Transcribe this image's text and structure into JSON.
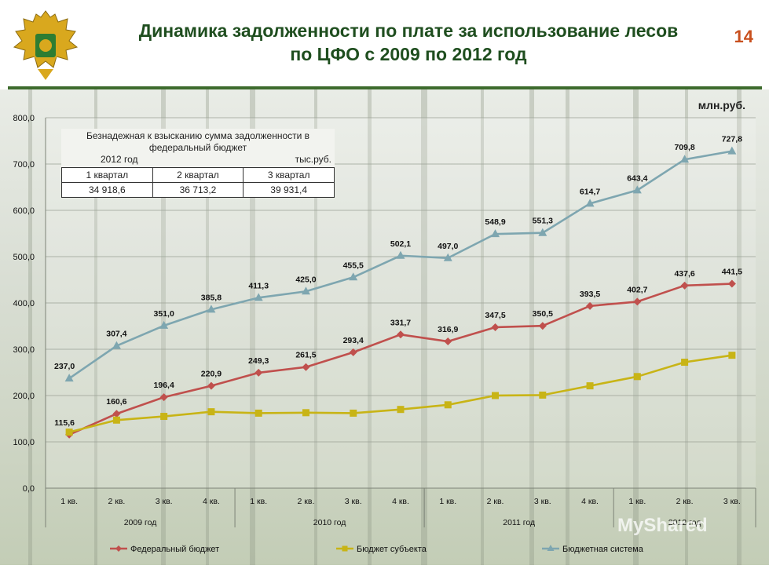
{
  "header": {
    "title_line1": "Динамика задолженности по плате за использование лесов",
    "title_line2": "по ЦФО с 2009 по 2012 год",
    "page_number": "14"
  },
  "units": "млн.руб.",
  "info_box": {
    "caption": "Безнадежная к взысканию сумма задолженности в федеральный бюджет",
    "year": "2012 год",
    "unit": "тыс.руб.",
    "headers": [
      "1 квартал",
      "2 квартал",
      "3 квартал"
    ],
    "values": [
      "34 918,6",
      "36 713,2",
      "39 931,4"
    ]
  },
  "watermark": "MyShared",
  "chart_data": {
    "type": "line",
    "categories": [
      "1 кв.",
      "2 кв.",
      "3 кв.",
      "4 кв.",
      "1 кв.",
      "2 кв.",
      "3 кв.",
      "4 кв.",
      "1 кв.",
      "2 кв.",
      "3 кв.",
      "4 кв.",
      "1 кв.",
      "2 кв.",
      "3 кв."
    ],
    "year_groups": [
      {
        "label": "2009 год",
        "count": 4
      },
      {
        "label": "2010 год",
        "count": 4
      },
      {
        "label": "2011 год",
        "count": 4
      },
      {
        "label": "2012 год",
        "count": 3
      }
    ],
    "ylim": [
      0,
      800
    ],
    "yticks": [
      "0,0",
      "100,0",
      "200,0",
      "300,0",
      "400,0",
      "500,0",
      "600,0",
      "700,0",
      "800,0"
    ],
    "grid": true,
    "legend_position": "bottom",
    "series": [
      {
        "name": "Федеральный бюджет",
        "color": "#c0504d",
        "marker": "diamond",
        "values": [
          115.6,
          160.6,
          196.4,
          220.9,
          249.3,
          261.5,
          293.4,
          331.7,
          316.9,
          347.5,
          350.5,
          393.5,
          402.7,
          437.6,
          441.5
        ],
        "labels": [
          "115,6",
          "160,6",
          "196,4",
          "220,9",
          "249,3",
          "261,5",
          "293,4",
          "331,7",
          "316,9",
          "347,5",
          "350,5",
          "393,5",
          "402,7",
          "437,6",
          "441,5"
        ]
      },
      {
        "name": "Бюджет субъекта",
        "color": "#c8b416",
        "marker": "square",
        "values": [
          121,
          147,
          155,
          165,
          162,
          163,
          162,
          170,
          180,
          200,
          201,
          221,
          241,
          272,
          287
        ]
      },
      {
        "name": "Бюджетная система",
        "color": "#7ea6b0",
        "marker": "triangle",
        "values": [
          237.0,
          307.4,
          351.0,
          385.8,
          411.3,
          425.0,
          455.5,
          502.1,
          497.0,
          548.9,
          551.3,
          614.7,
          643.4,
          709.8,
          727.8
        ],
        "labels": [
          "237,0",
          "307,4",
          "351,0",
          "385,8",
          "411,3",
          "425,0",
          "455,5",
          "502,1",
          "497,0",
          "548,9",
          "551,3",
          "614,7",
          "643,4",
          "709,8",
          "727,8"
        ]
      }
    ]
  }
}
